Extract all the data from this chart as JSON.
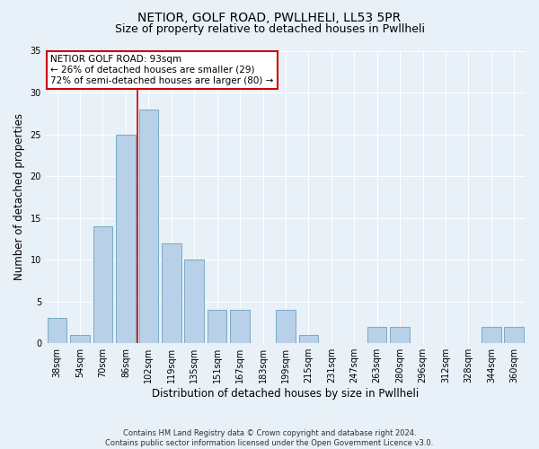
{
  "title1": "NETIOR, GOLF ROAD, PWLLHELI, LL53 5PR",
  "title2": "Size of property relative to detached houses in Pwllheli",
  "xlabel": "Distribution of detached houses by size in Pwllheli",
  "ylabel": "Number of detached properties",
  "categories": [
    "38sqm",
    "54sqm",
    "70sqm",
    "86sqm",
    "102sqm",
    "119sqm",
    "135sqm",
    "151sqm",
    "167sqm",
    "183sqm",
    "199sqm",
    "215sqm",
    "231sqm",
    "247sqm",
    "263sqm",
    "280sqm",
    "296sqm",
    "312sqm",
    "328sqm",
    "344sqm",
    "360sqm"
  ],
  "values": [
    3,
    1,
    14,
    25,
    28,
    12,
    10,
    4,
    4,
    0,
    4,
    1,
    0,
    0,
    2,
    2,
    0,
    0,
    0,
    2,
    2
  ],
  "bar_color": "#b8d0e8",
  "bar_edge_color": "#7aaac8",
  "background_color": "#e8f0f8",
  "grid_color": "#ffffff",
  "vline_x": 3.5,
  "vline_color": "#cc0000",
  "annotation_lines": [
    "NETIOR GOLF ROAD: 93sqm",
    "← 26% of detached houses are smaller (29)",
    "72% of semi-detached houses are larger (80) →"
  ],
  "annotation_box_color": "#ffffff",
  "annotation_box_edge": "#cc0000",
  "ylim": [
    0,
    35
  ],
  "yticks": [
    0,
    5,
    10,
    15,
    20,
    25,
    30,
    35
  ],
  "footer": "Contains HM Land Registry data © Crown copyright and database right 2024.\nContains public sector information licensed under the Open Government Licence v3.0.",
  "title1_fontsize": 10,
  "title2_fontsize": 9,
  "xlabel_fontsize": 8.5,
  "ylabel_fontsize": 8.5,
  "tick_fontsize": 7,
  "annotation_fontsize": 7.5,
  "footer_fontsize": 6
}
